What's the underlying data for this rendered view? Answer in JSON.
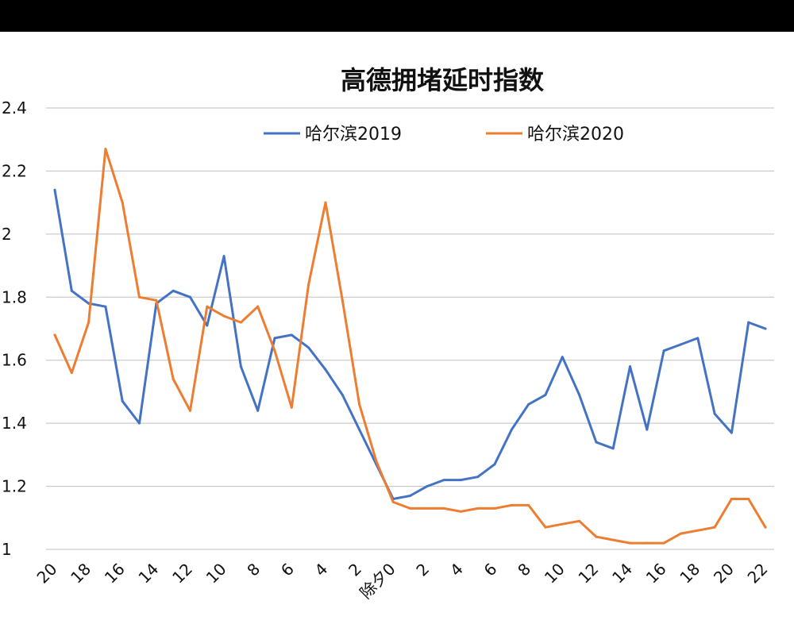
{
  "chart_data": {
    "type": "line",
    "title": "高德拥堵延时指数",
    "xlabel": "",
    "ylabel": "",
    "ylim": [
      1,
      2.4
    ],
    "yticks": [
      "1",
      "1.2",
      "1.4",
      "1.6",
      "1.8",
      "2",
      "2.2",
      "2.4"
    ],
    "grid": true,
    "legend_position": "top",
    "categories": [
      "20",
      "19",
      "18",
      "17",
      "16",
      "15",
      "14",
      "13",
      "12",
      "11",
      "10",
      "9",
      "8",
      "7",
      "6",
      "5",
      "4",
      "3",
      "2",
      "1",
      "除夕0",
      "1",
      "2",
      "3",
      "4",
      "5",
      "6",
      "7",
      "8",
      "9",
      "10",
      "11",
      "12",
      "13",
      "14",
      "15",
      "16",
      "17",
      "18",
      "19",
      "20",
      "21",
      "22"
    ],
    "tick_labels": [
      "20",
      "18",
      "16",
      "14",
      "12",
      "10",
      "8",
      "6",
      "4",
      "2",
      "除夕0",
      "2",
      "4",
      "6",
      "8",
      "10",
      "12",
      "14",
      "16",
      "18",
      "20",
      "22"
    ],
    "series": [
      {
        "name": "哈尔滨2019",
        "color": "#4472C4",
        "values": [
          2.14,
          1.82,
          1.78,
          1.77,
          1.47,
          1.4,
          1.78,
          1.82,
          1.8,
          1.71,
          1.93,
          1.58,
          1.44,
          1.67,
          1.68,
          1.64,
          1.57,
          1.49,
          1.38,
          1.27,
          1.16,
          1.17,
          1.2,
          1.22,
          1.22,
          1.23,
          1.27,
          1.38,
          1.46,
          1.49,
          1.61,
          1.49,
          1.34,
          1.32,
          1.58,
          1.38,
          1.63,
          1.65,
          1.67,
          1.43,
          1.37,
          1.72,
          1.7
        ]
      },
      {
        "name": "哈尔滨2020",
        "color": "#ED7D31",
        "values": [
          1.68,
          1.56,
          1.72,
          2.27,
          2.1,
          1.8,
          1.79,
          1.54,
          1.44,
          1.77,
          1.74,
          1.72,
          1.77,
          1.63,
          1.45,
          1.84,
          2.1,
          1.79,
          1.46,
          1.28,
          1.15,
          1.13,
          1.13,
          1.13,
          1.12,
          1.13,
          1.13,
          1.14,
          1.14,
          1.07,
          1.08,
          1.09,
          1.04,
          1.03,
          1.02,
          1.02,
          1.02,
          1.05,
          1.06,
          1.07,
          1.16,
          1.16,
          1.07
        ]
      }
    ]
  }
}
